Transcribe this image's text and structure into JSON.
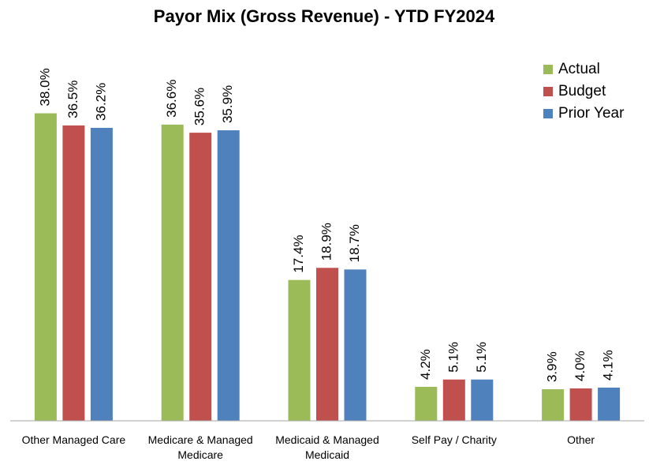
{
  "chart_data": {
    "type": "bar",
    "title": "Payor Mix (Gross Revenue) - YTD FY2024",
    "categories": [
      "Other Managed Care",
      "Medicare & Managed Medicare",
      "Medicaid & Managed Medicaid",
      "Self Pay / Charity",
      "Other"
    ],
    "series": [
      {
        "name": "Actual",
        "color": "#9bbb59",
        "values": [
          38.0,
          36.6,
          17.4,
          4.2,
          3.9
        ],
        "value_labels": [
          "38.0%",
          "36.6%",
          "17.4%",
          "4.2%",
          "3.9%"
        ]
      },
      {
        "name": "Budget",
        "color": "#c0504d",
        "values": [
          36.5,
          35.6,
          18.9,
          5.1,
          4.0
        ],
        "value_labels": [
          "36.5%",
          "35.6%",
          "18.9%",
          "5.1%",
          "4.0%"
        ]
      },
      {
        "name": "Prior Year",
        "color": "#4f81bd",
        "values": [
          36.2,
          35.9,
          18.7,
          5.1,
          4.1
        ],
        "value_labels": [
          "36.2%",
          "35.9%",
          "18.7%",
          "5.1%",
          "4.1%"
        ]
      }
    ],
    "ylim": [
      0,
      40
    ],
    "legend": "top-right"
  }
}
